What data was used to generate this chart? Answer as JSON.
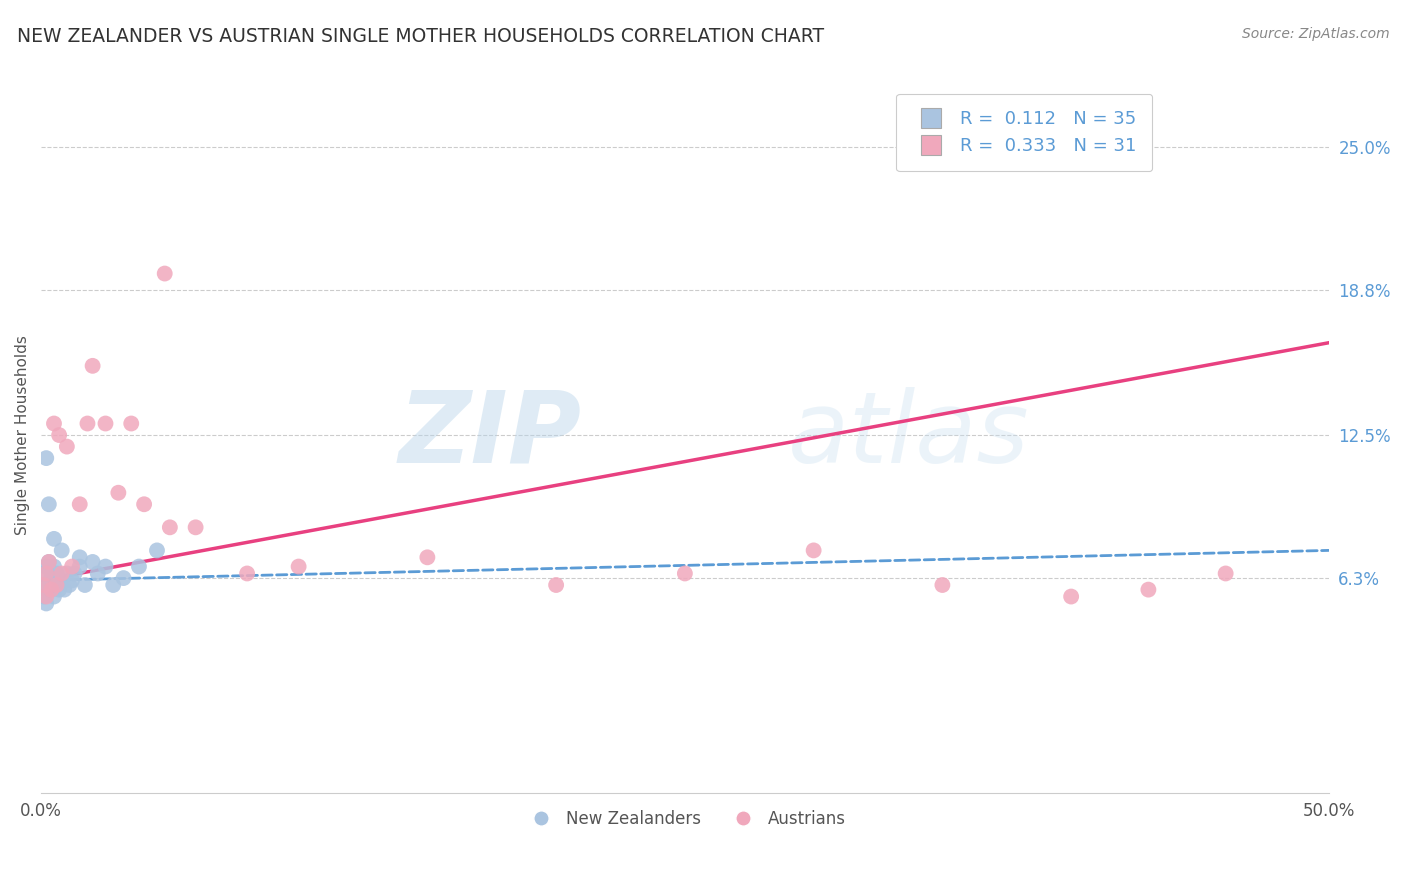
{
  "title": "NEW ZEALANDER VS AUSTRIAN SINGLE MOTHER HOUSEHOLDS CORRELATION CHART",
  "source": "Source: ZipAtlas.com",
  "ylabel": "Single Mother Households",
  "xlim": [
    0.0,
    0.5
  ],
  "ylim": [
    -0.03,
    0.28
  ],
  "yticks": [
    0.063,
    0.125,
    0.188,
    0.25
  ],
  "ytick_labels": [
    "6.3%",
    "12.5%",
    "18.8%",
    "25.0%"
  ],
  "xtick_labels": [
    "0.0%",
    "50.0%"
  ],
  "nz_color": "#aac4e0",
  "at_color": "#f0a8bc",
  "nz_line_color": "#5b9bd5",
  "at_line_color": "#e84080",
  "nz_R": 0.112,
  "nz_N": 35,
  "at_R": 0.333,
  "at_N": 31,
  "watermark_zip": "ZIP",
  "watermark_atlas": "atlas",
  "nz_scatter_x": [
    0.001,
    0.001,
    0.001,
    0.002,
    0.002,
    0.002,
    0.003,
    0.003,
    0.004,
    0.004,
    0.005,
    0.005,
    0.006,
    0.006,
    0.007,
    0.008,
    0.009,
    0.01,
    0.011,
    0.012,
    0.013,
    0.015,
    0.017,
    0.02,
    0.022,
    0.025,
    0.028,
    0.032,
    0.038,
    0.045,
    0.002,
    0.003,
    0.005,
    0.008,
    0.015
  ],
  "nz_scatter_y": [
    0.06,
    0.055,
    0.065,
    0.058,
    0.052,
    0.068,
    0.06,
    0.07,
    0.058,
    0.063,
    0.055,
    0.068,
    0.06,
    0.065,
    0.058,
    0.062,
    0.058,
    0.065,
    0.06,
    0.062,
    0.065,
    0.068,
    0.06,
    0.07,
    0.065,
    0.068,
    0.06,
    0.063,
    0.068,
    0.075,
    0.115,
    0.095,
    0.08,
    0.075,
    0.072
  ],
  "at_scatter_x": [
    0.001,
    0.002,
    0.002,
    0.003,
    0.004,
    0.005,
    0.006,
    0.007,
    0.008,
    0.01,
    0.012,
    0.015,
    0.018,
    0.02,
    0.025,
    0.03,
    0.035,
    0.04,
    0.05,
    0.06,
    0.08,
    0.1,
    0.15,
    0.2,
    0.25,
    0.3,
    0.35,
    0.4,
    0.43,
    0.46,
    0.048
  ],
  "at_scatter_y": [
    0.06,
    0.065,
    0.055,
    0.07,
    0.058,
    0.13,
    0.06,
    0.125,
    0.065,
    0.12,
    0.068,
    0.095,
    0.13,
    0.155,
    0.13,
    0.1,
    0.13,
    0.095,
    0.085,
    0.085,
    0.065,
    0.068,
    0.072,
    0.06,
    0.065,
    0.075,
    0.06,
    0.055,
    0.058,
    0.065,
    0.195
  ],
  "nz_trend_x": [
    0.0,
    0.5
  ],
  "nz_trend_y": [
    0.062,
    0.075
  ],
  "at_trend_x": [
    0.0,
    0.5
  ],
  "at_trend_y": [
    0.062,
    0.165
  ]
}
